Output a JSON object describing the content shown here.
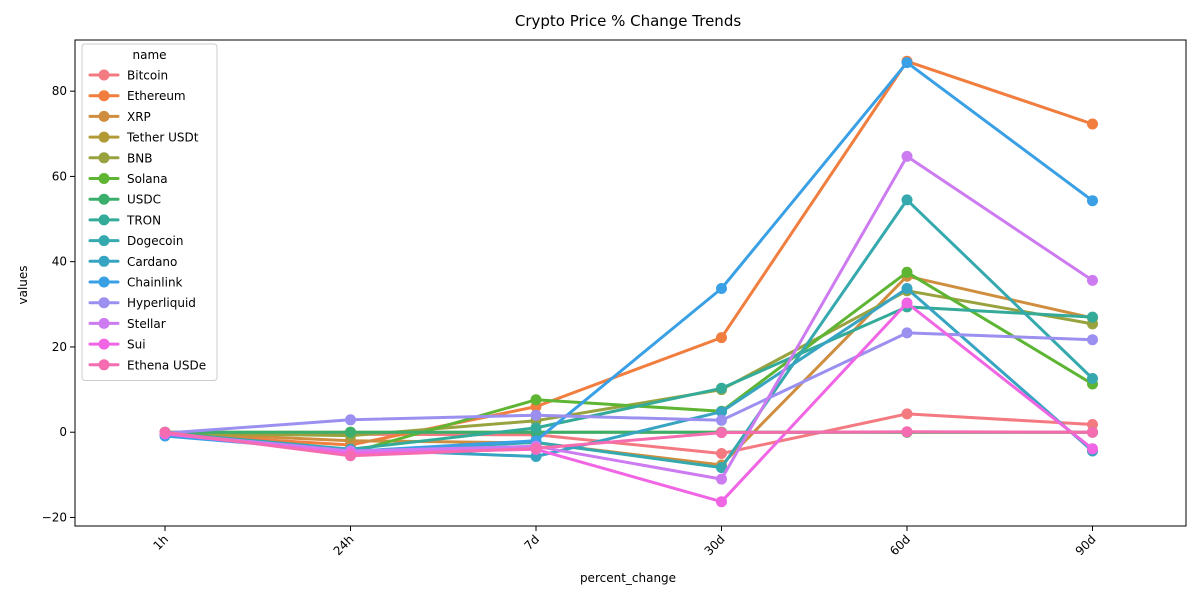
{
  "chart_data": {
    "type": "line",
    "title": "Crypto Price % Change Trends",
    "xlabel": "percent_change",
    "ylabel": "values",
    "categories": [
      "1h",
      "24h",
      "7d",
      "30d",
      "60d",
      "90d"
    ],
    "ylim": [
      -22,
      92
    ],
    "yticks": [
      -20,
      0,
      20,
      40,
      60,
      80
    ],
    "ytick_labels": [
      "−20",
      "0",
      "20",
      "40",
      "60",
      "80"
    ],
    "grid": false,
    "legend": {
      "title": "name",
      "placement": "top-left"
    },
    "series": [
      {
        "name": "Bitcoin",
        "color": "#f47a82",
        "values": [
          -0.2,
          -0.5,
          -0.6,
          -5.0,
          4.3,
          1.8
        ]
      },
      {
        "name": "Ethereum",
        "color": "#f17d3e",
        "values": [
          -0.4,
          -3.0,
          6.0,
          22.2,
          87.0,
          72.3
        ]
      },
      {
        "name": "XRP",
        "color": "#cf8e3f",
        "values": [
          -0.1,
          -2.0,
          -2.5,
          -7.7,
          36.6,
          26.8
        ]
      },
      {
        "name": "Tether USDt",
        "color": "#b29b37",
        "values": [
          0.0,
          0.0,
          0.0,
          0.0,
          0.0,
          0.0
        ]
      },
      {
        "name": "BNB",
        "color": "#98a23e",
        "values": [
          -0.2,
          -0.8,
          2.7,
          10.0,
          33.2,
          25.4
        ]
      },
      {
        "name": "Solana",
        "color": "#5eb533",
        "values": [
          -0.3,
          -4.8,
          7.6,
          4.9,
          37.5,
          11.3
        ]
      },
      {
        "name": "USDC",
        "color": "#3bae6b",
        "values": [
          0.0,
          0.0,
          0.0,
          0.0,
          0.0,
          0.0
        ]
      },
      {
        "name": "TRON",
        "color": "#34ab99",
        "values": [
          -0.1,
          -4.0,
          1.0,
          10.3,
          29.4,
          27.0
        ]
      },
      {
        "name": "Dogecoin",
        "color": "#35a9ae",
        "values": [
          -0.3,
          -4.5,
          -2.4,
          -8.3,
          54.5,
          12.6
        ]
      },
      {
        "name": "Cardano",
        "color": "#37a4c2",
        "values": [
          -0.5,
          -4.0,
          -5.7,
          4.8,
          33.7,
          -4.4
        ]
      },
      {
        "name": "Chainlink",
        "color": "#3aa0e6",
        "values": [
          -0.9,
          -4.5,
          -2.0,
          33.7,
          86.7,
          54.3
        ]
      },
      {
        "name": "Hyperliquid",
        "color": "#9b8ff0",
        "values": [
          -0.2,
          2.9,
          4.0,
          2.8,
          23.3,
          21.7
        ]
      },
      {
        "name": "Stellar",
        "color": "#cc7cf0",
        "values": [
          -0.3,
          -4.4,
          -3.3,
          -11.0,
          64.7,
          35.6
        ]
      },
      {
        "name": "Sui",
        "color": "#f065e3",
        "values": [
          -0.4,
          -5.0,
          -4.0,
          -16.3,
          30.3,
          -3.9
        ]
      },
      {
        "name": "Ethena USDe",
        "color": "#f56db0",
        "values": [
          0.0,
          -5.5,
          -3.8,
          -0.1,
          0.1,
          0.0
        ]
      }
    ]
  }
}
